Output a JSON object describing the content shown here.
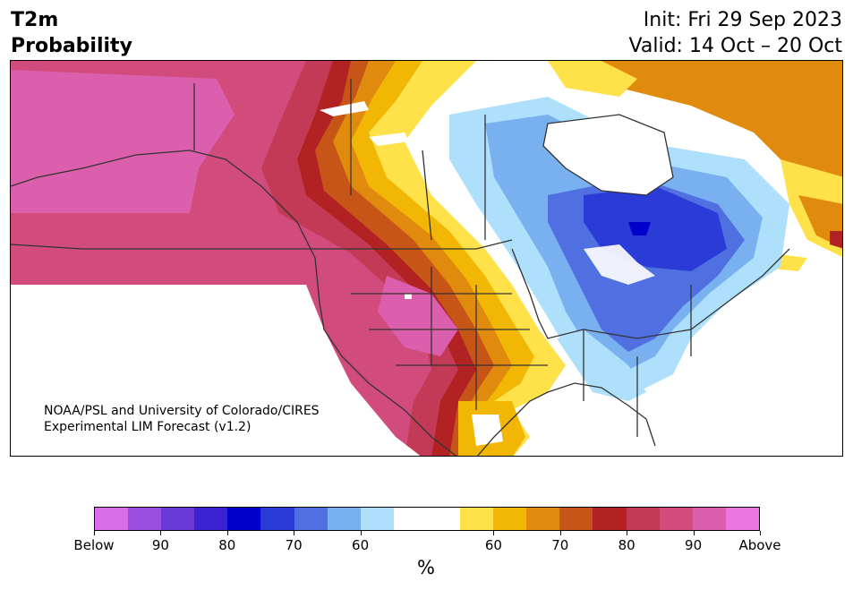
{
  "header": {
    "title_line1": "T2m",
    "title_line2": "Probability",
    "init": "Init: Fri 29 Sep 2023",
    "valid": "Valid: 14 Oct – 20 Oct"
  },
  "map": {
    "region": "North America",
    "credit_line1": "NOAA/PSL and University of Colorado/CIRES",
    "credit_line2": "Experimental LIM Forecast (v1.2)"
  },
  "colorbar": {
    "unit": "%",
    "colors": [
      "#d96ee8",
      "#9b4de0",
      "#6a38d6",
      "#3a22d2",
      "#0000cc",
      "#2a3bd8",
      "#5070e2",
      "#78b0f0",
      "#aee0fc",
      "#ffffff",
      "#ffffff",
      "#ffe14a",
      "#f2b705",
      "#e08a0e",
      "#c85518",
      "#b22222",
      "#c23a55",
      "#d14c7c",
      "#dc5fae",
      "#e878df"
    ],
    "tick_labels": [
      "Below",
      "90",
      "80",
      "70",
      "60",
      "60",
      "70",
      "80",
      "90",
      "Above"
    ]
  }
}
